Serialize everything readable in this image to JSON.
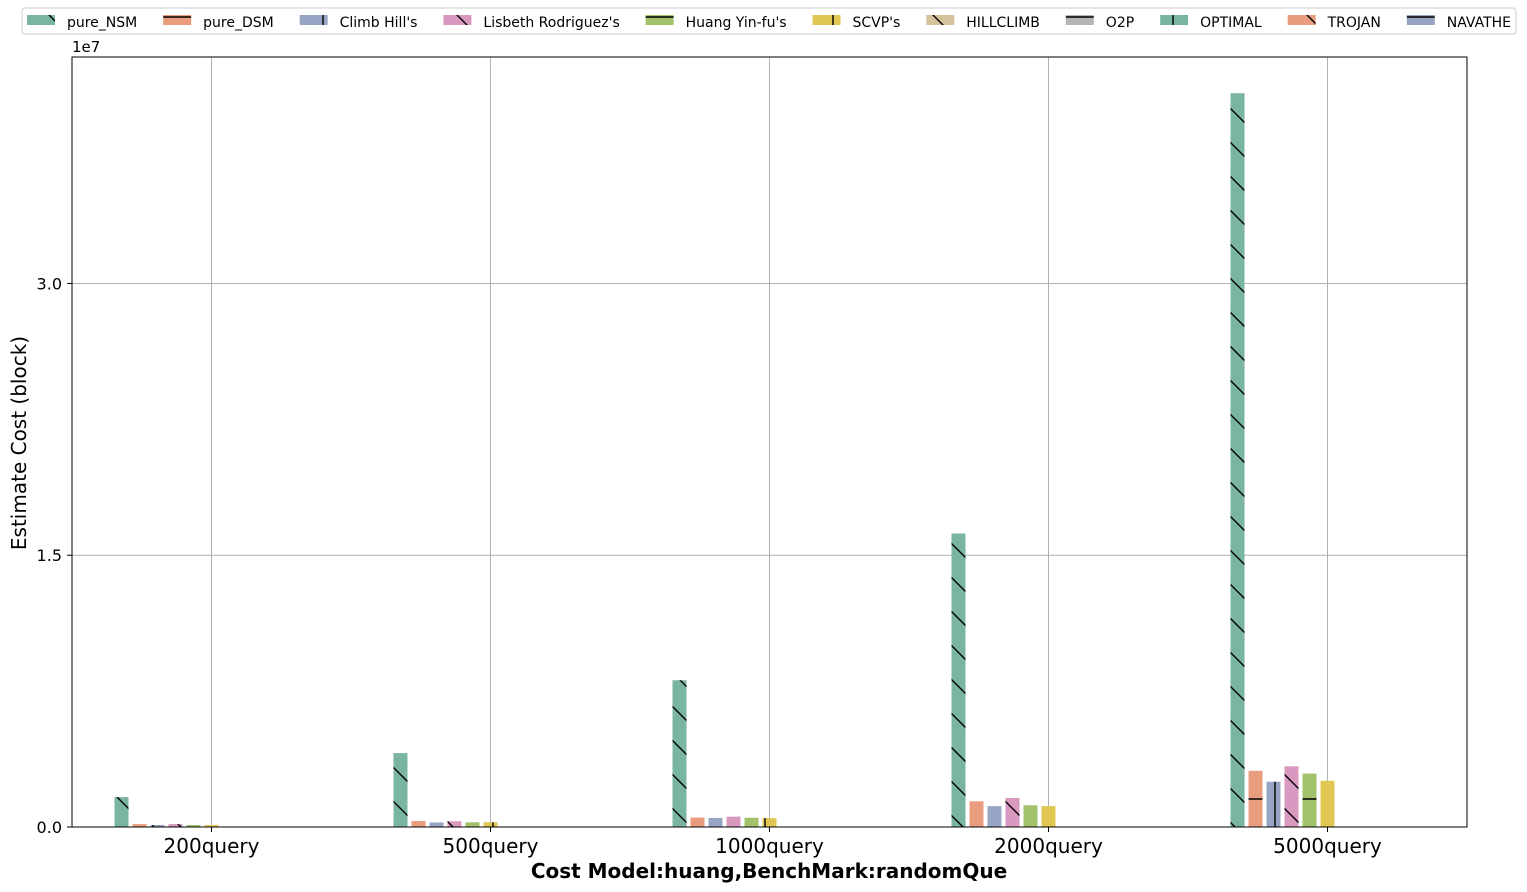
{
  "chart_data": {
    "type": "bar",
    "title": "",
    "xlabel": "Cost Model:huang,BenchMark:randomQue",
    "ylabel": "Estimate Cost (block)",
    "y_offset_label": "1e7",
    "ylim": [
      0,
      42500000
    ],
    "y_ticks": [
      0,
      15000000,
      30000000
    ],
    "y_tick_labels": [
      "0.0",
      "1.5",
      "3.0"
    ],
    "grid": true,
    "legend_position": "top",
    "categories": [
      "200query",
      "500query",
      "1000query",
      "2000query",
      "5000query"
    ],
    "series": [
      {
        "name": "pure_NSM",
        "color": "#7ab5a0",
        "hatch": "backslash",
        "values": [
          1650000,
          4080000,
          8100000,
          16200000,
          40500000
        ]
      },
      {
        "name": "pure_DSM",
        "color": "#e99c7e",
        "hatch": "horizontal",
        "values": [
          160000,
          330000,
          520000,
          1420000,
          3100000
        ]
      },
      {
        "name": "Climb Hill's",
        "color": "#97a5c5",
        "hatch": "vertical",
        "values": [
          110000,
          250000,
          500000,
          1150000,
          2500000
        ]
      },
      {
        "name": "Lisbeth Rodriguez's",
        "color": "#d898bf",
        "hatch": "backslash",
        "values": [
          160000,
          320000,
          570000,
          1600000,
          3350000
        ]
      },
      {
        "name": "Huang Yin-fu's",
        "color": "#a2c26c",
        "hatch": "horizontal",
        "values": [
          110000,
          260000,
          510000,
          1200000,
          2950000
        ]
      },
      {
        "name": "SCVP's",
        "color": "#e0c652",
        "hatch": "vertical",
        "values": [
          110000,
          260000,
          490000,
          1150000,
          2550000
        ]
      },
      {
        "name": "HILLCLIMB",
        "color": "#d6c39e",
        "hatch": "backslash",
        "values": [
          0,
          0,
          0,
          0,
          0
        ]
      },
      {
        "name": "O2P",
        "color": "#b5b5b5",
        "hatch": "horizontal",
        "values": [
          0,
          0,
          0,
          0,
          0
        ]
      },
      {
        "name": "OPTIMAL",
        "color": "#7ab5a0",
        "hatch": "vertical",
        "values": [
          0,
          0,
          0,
          0,
          0
        ]
      },
      {
        "name": "TROJAN",
        "color": "#e99c7e",
        "hatch": "backslash",
        "values": [
          0,
          0,
          0,
          0,
          0
        ]
      },
      {
        "name": "NAVATHE",
        "color": "#97a5c5",
        "hatch": "horizontal",
        "values": [
          0,
          0,
          0,
          0,
          0
        ]
      }
    ]
  }
}
